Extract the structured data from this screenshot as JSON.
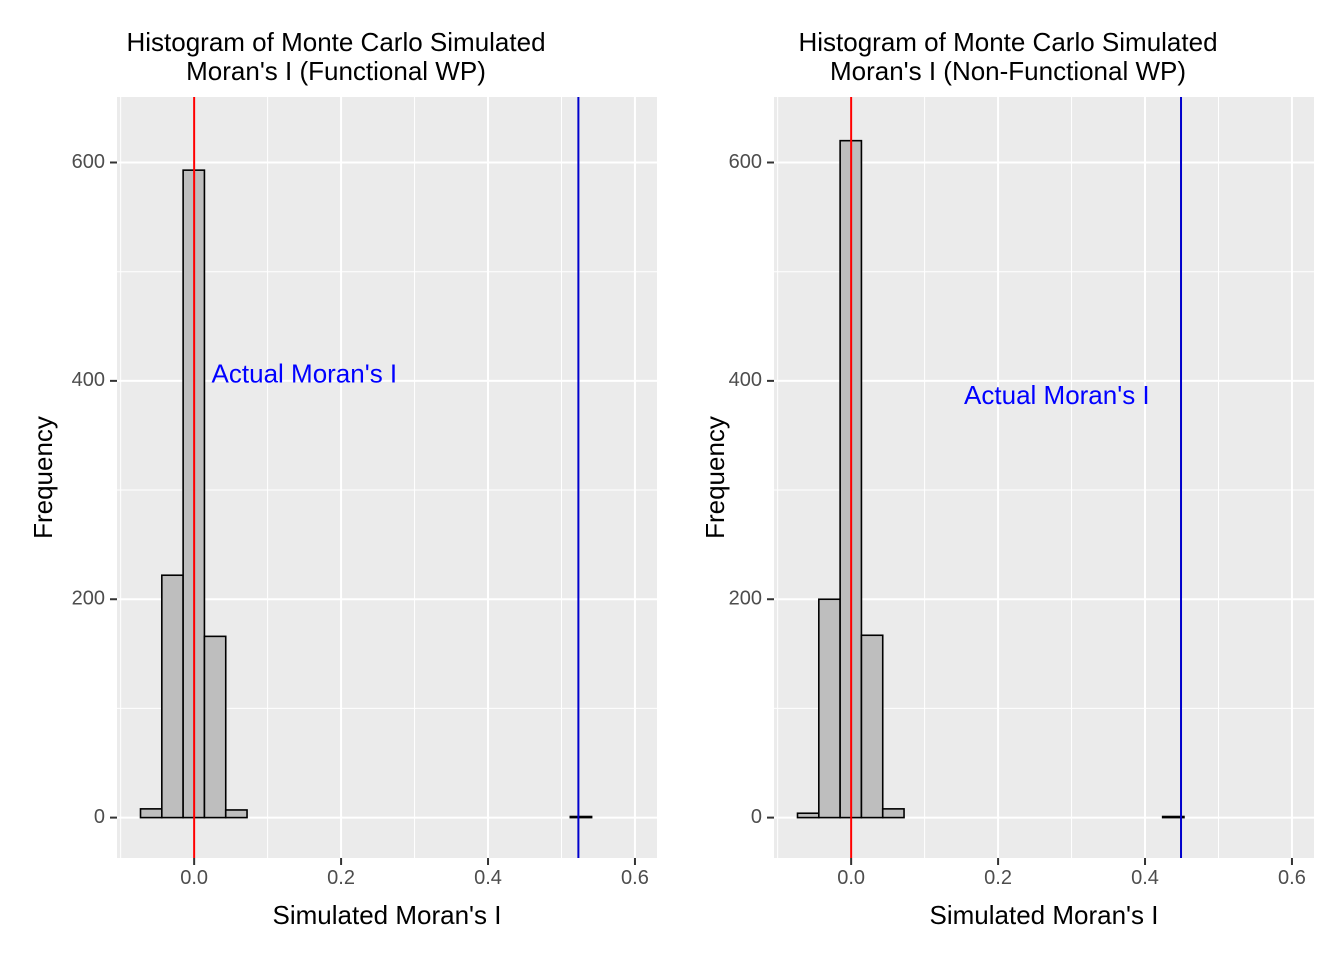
{
  "chart_data": [
    {
      "type": "bar",
      "subtype": "histogram",
      "title_lines": [
        "Histogram of Monte Carlo Simulated",
        "Moran's I (Functional WP)"
      ],
      "xlabel": "Simulated Moran's I",
      "ylabel": "Frequency",
      "xlim": [
        -0.105,
        0.63
      ],
      "ylim": [
        -37,
        660
      ],
      "xticks": [
        0.0,
        0.2,
        0.4,
        0.6
      ],
      "xtick_labels": [
        "0.0",
        "0.2",
        "0.4",
        "0.6"
      ],
      "yticks": [
        0,
        200,
        400,
        600
      ],
      "ytick_labels": [
        "0",
        "200",
        "400",
        "600"
      ],
      "grid": true,
      "bin_width": 0.029,
      "bins": [
        {
          "x0": -0.073,
          "x1": -0.044,
          "count": 8
        },
        {
          "x0": -0.044,
          "x1": -0.015,
          "count": 222
        },
        {
          "x0": -0.015,
          "x1": 0.014,
          "count": 593
        },
        {
          "x0": 0.014,
          "x1": 0.043,
          "count": 166
        },
        {
          "x0": 0.043,
          "x1": 0.072,
          "count": 7
        },
        {
          "x0": 0.072,
          "x1": 0.512,
          "count": 0
        },
        {
          "x0": 0.512,
          "x1": 0.541,
          "count": 1
        },
        {
          "x0": 0.541,
          "x1": 0.599,
          "count": 0
        }
      ],
      "reference_lines": [
        {
          "x": 0.0,
          "color": "#ff0000"
        },
        {
          "x": 0.523,
          "color": "#0000cc"
        }
      ],
      "annotation": {
        "text": "Actual Moran's I",
        "x": 0.15,
        "y": 405,
        "color": "#0000ff"
      },
      "colors": {
        "bar_fill": "#bebebe",
        "bar_stroke": "#000000",
        "panel_bg": "#ebebeb",
        "grid": "#ffffff"
      }
    },
    {
      "type": "bar",
      "subtype": "histogram",
      "title_lines": [
        "Histogram of Monte Carlo Simulated",
        "Moran's I (Non-Functional WP)"
      ],
      "xlabel": "Simulated Moran's I",
      "ylabel": "Frequency",
      "xlim": [
        -0.105,
        0.63
      ],
      "ylim": [
        -37,
        660
      ],
      "xticks": [
        0.0,
        0.2,
        0.4,
        0.6
      ],
      "xtick_labels": [
        "0.0",
        "0.2",
        "0.4",
        "0.6"
      ],
      "yticks": [
        0,
        200,
        400,
        600
      ],
      "ytick_labels": [
        "0",
        "200",
        "400",
        "600"
      ],
      "grid": true,
      "bin_width": 0.029,
      "bins": [
        {
          "x0": -0.073,
          "x1": -0.044,
          "count": 4
        },
        {
          "x0": -0.044,
          "x1": -0.015,
          "count": 200
        },
        {
          "x0": -0.015,
          "x1": 0.014,
          "count": 620
        },
        {
          "x0": 0.014,
          "x1": 0.043,
          "count": 167
        },
        {
          "x0": 0.043,
          "x1": 0.072,
          "count": 8
        },
        {
          "x0": 0.072,
          "x1": 0.424,
          "count": 0
        },
        {
          "x0": 0.424,
          "x1": 0.453,
          "count": 1
        },
        {
          "x0": 0.453,
          "x1": 0.599,
          "count": 0
        }
      ],
      "reference_lines": [
        {
          "x": 0.0,
          "color": "#ff0000"
        },
        {
          "x": 0.449,
          "color": "#0000cc"
        }
      ],
      "annotation": {
        "text": "Actual Moran's I",
        "x": 0.28,
        "y": 385,
        "color": "#0000ff"
      },
      "colors": {
        "bar_fill": "#bebebe",
        "bar_stroke": "#000000",
        "panel_bg": "#ebebeb",
        "grid": "#ffffff"
      }
    }
  ]
}
